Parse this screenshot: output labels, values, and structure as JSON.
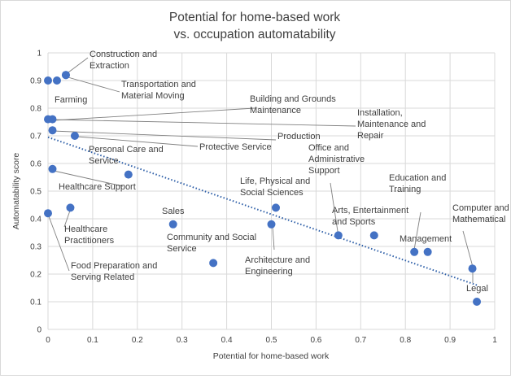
{
  "chart_data": {
    "type": "scatter",
    "title": [
      "Potential for home-based work",
      "vs. occupation automatability"
    ],
    "xlabel": "Potential for home-based work",
    "ylabel": "Automatability score",
    "xlim": [
      0,
      1
    ],
    "ylim": [
      0,
      1
    ],
    "x_ticks": [
      "0",
      "0.1",
      "0.2",
      "0.3",
      "0.4",
      "0.5",
      "0.6",
      "0.7",
      "0.8",
      "0.9",
      "1"
    ],
    "y_ticks": [
      "0",
      "0.1",
      "0.2",
      "0.3",
      "0.4",
      "0.5",
      "0.6",
      "0.7",
      "0.8",
      "0.9",
      "1"
    ],
    "grid": true,
    "trendline": {
      "type": "linear",
      "style": "dotted",
      "from": [
        0,
        0.695
      ],
      "to": [
        0.96,
        0.16
      ]
    },
    "points": [
      {
        "label": "Farming",
        "x": 0.0,
        "y": 0.9
      },
      {
        "label": "",
        "x": 0.02,
        "y": 0.9
      },
      {
        "label": "Construction and Extraction",
        "x": 0.04,
        "y": 0.92
      },
      {
        "label": "Transportation and Material Moving",
        "x": 0.04,
        "y": 0.92
      },
      {
        "label": "Installation, Maintenance and Repair",
        "x": 0.0,
        "y": 0.76
      },
      {
        "label": "Building and Grounds Maintenance",
        "x": 0.01,
        "y": 0.76
      },
      {
        "label": "Production",
        "x": 0.01,
        "y": 0.72
      },
      {
        "label": "Protective Service",
        "x": 0.06,
        "y": 0.7
      },
      {
        "label": "Healthcare Support",
        "x": 0.01,
        "y": 0.58
      },
      {
        "label": "Personal Care and Service",
        "x": 0.18,
        "y": 0.56
      },
      {
        "label": "Food Preparation and Serving Related",
        "x": 0.0,
        "y": 0.42
      },
      {
        "label": "Healthcare Practitioners",
        "x": 0.05,
        "y": 0.44
      },
      {
        "label": "Sales",
        "x": 0.28,
        "y": 0.38
      },
      {
        "label": "Community and Social Service",
        "x": 0.37,
        "y": 0.24
      },
      {
        "label": "Life, Physical and Social Sciences",
        "x": 0.51,
        "y": 0.44
      },
      {
        "label": "Architecture and Engineering",
        "x": 0.5,
        "y": 0.38
      },
      {
        "label": "Office and Administrative Support",
        "x": 0.65,
        "y": 0.34
      },
      {
        "label": "Arts, Entertainment and Sports",
        "x": 0.73,
        "y": 0.34
      },
      {
        "label": "Education and Training",
        "x": 0.82,
        "y": 0.28
      },
      {
        "label": "Management",
        "x": 0.85,
        "y": 0.28
      },
      {
        "label": "Computer and Mathematical",
        "x": 0.95,
        "y": 0.22
      },
      {
        "label": "Legal",
        "x": 0.96,
        "y": 0.1
      }
    ],
    "annotations": [
      {
        "lines": [
          "Construction and",
          "Extraction"
        ]
      },
      {
        "lines": [
          "Transportation and",
          "Material Moving"
        ]
      },
      {
        "lines": [
          "Farming"
        ]
      },
      {
        "lines": [
          "Building and Grounds",
          "Maintenance"
        ]
      },
      {
        "lines": [
          "Installation,",
          "Maintenance and",
          "Repair"
        ]
      },
      {
        "lines": [
          "Production"
        ]
      },
      {
        "lines": [
          "Protective Service"
        ]
      },
      {
        "lines": [
          "Personal Care and",
          "Service"
        ]
      },
      {
        "lines": [
          "Office and",
          "Administrative",
          "Support"
        ]
      },
      {
        "lines": [
          "Healthcare Support"
        ]
      },
      {
        "lines": [
          "Education and",
          "Training"
        ]
      },
      {
        "lines": [
          "Life, Physical and",
          "Social Sciences"
        ]
      },
      {
        "lines": [
          "Computer and",
          "Mathematical"
        ]
      },
      {
        "lines": [
          "Healthcare",
          "Practitioners"
        ]
      },
      {
        "lines": [
          "Sales"
        ]
      },
      {
        "lines": [
          "Arts, Entertainment",
          "and Sports"
        ]
      },
      {
        "lines": [
          "Community and Social",
          "Service"
        ]
      },
      {
        "lines": [
          "Management"
        ]
      },
      {
        "lines": [
          "Architecture and",
          "Engineering"
        ]
      },
      {
        "lines": [
          "Food Preparation and",
          "Serving Related"
        ]
      },
      {
        "lines": [
          "Legal"
        ]
      }
    ],
    "colors": {
      "marker": "#4472C4",
      "trendline": "#2E5FA8",
      "grid": "#d9d9d9",
      "text": "#404040",
      "leader": "#808080"
    }
  }
}
